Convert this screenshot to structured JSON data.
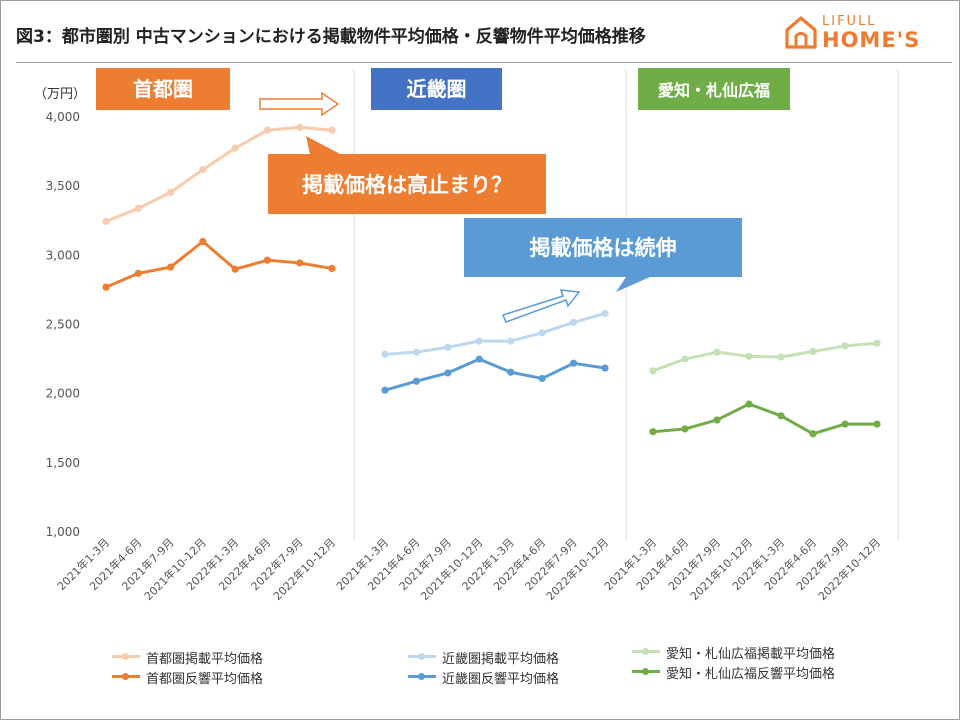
{
  "page": {
    "title": "図3：都市圏別 中古マンションにおける掲載物件平均価格・反響物件平均価格推移",
    "logo_top": "LIFULL",
    "logo_bottom": "HOME'S",
    "brand_color": "#ee7b2f"
  },
  "chart_data": {
    "type": "line",
    "ylabel": "（万円）",
    "ylim": [
      1000,
      4000
    ],
    "yticks": [
      "1,000",
      "1,500",
      "2,000",
      "2,500",
      "3,000",
      "3,500",
      "4,000"
    ],
    "ytick_values": [
      1000,
      1500,
      2000,
      2500,
      3000,
      3500,
      4000
    ],
    "grid": false,
    "categories": [
      "2021年1-3月",
      "2021年4-6月",
      "2021年7-9月",
      "2021年10-12月",
      "2022年1-3月",
      "2022年4-6月",
      "2022年7-9月",
      "2022年10-12月"
    ],
    "panels": [
      {
        "label": "首都圏",
        "label_color": "#ed7d31",
        "series": [
          {
            "name": "首都圏掲載平均価格",
            "color": "#f8cbad",
            "values": [
              3245,
              3340,
              3455,
              3620,
              3775,
              3905,
              3925,
              3905
            ]
          },
          {
            "name": "首都圏反響平均価格",
            "color": "#ed7d31",
            "values": [
              2770,
              2870,
              2915,
              3100,
              2900,
              2965,
              2945,
              2905
            ]
          }
        ]
      },
      {
        "label": "近畿圏",
        "label_color": "#4472c4",
        "series": [
          {
            "name": "近畿圏掲載平均価格",
            "color": "#bdd7ee",
            "values": [
              2285,
              2300,
              2335,
              2380,
              2380,
              2440,
              2515,
              2580
            ]
          },
          {
            "name": "近畿圏反響平均価格",
            "color": "#5b9bd5",
            "values": [
              2025,
              2090,
              2150,
              2250,
              2155,
              2110,
              2220,
              2185
            ]
          }
        ]
      },
      {
        "label": "愛知・札仙広福",
        "label_color": "#70ad47",
        "series": [
          {
            "name": "愛知・札仙広福掲載平均価格",
            "color": "#c5e0b4",
            "values": [
              2165,
              2250,
              2300,
              2270,
              2265,
              2305,
              2345,
              2365
            ]
          },
          {
            "name": "愛知・札仙広福反響平均価格",
            "color": "#70ad47",
            "values": [
              1725,
              1745,
              1810,
              1925,
              1840,
              1710,
              1780,
              1780
            ]
          }
        ]
      }
    ],
    "annotations": [
      {
        "text": "掲載価格は高止まり？",
        "color": "#ed7d31"
      },
      {
        "text": "掲載価格は続伸",
        "color": "#5b9bd5"
      }
    ]
  }
}
